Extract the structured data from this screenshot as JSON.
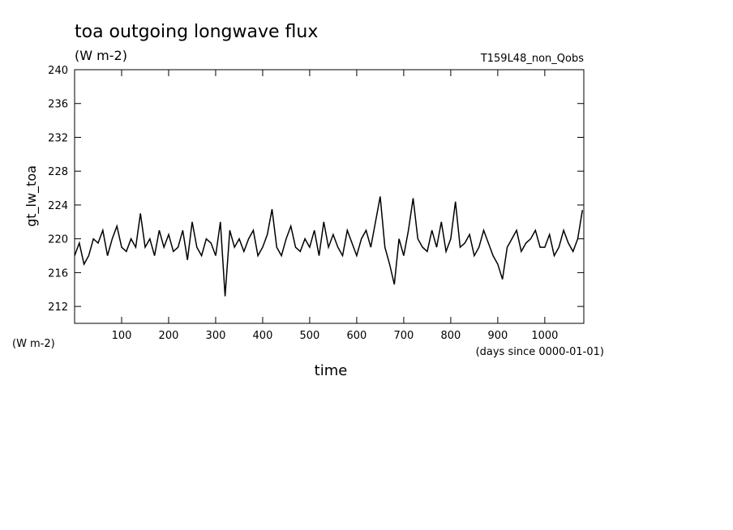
{
  "chart_data": {
    "type": "line",
    "title": "toa outgoing longwave flux",
    "subtitle": "(W m-2)",
    "experiment": "T159L48_non_Qobs",
    "y_label": "gt_lw_toa",
    "y_unit": "(W m-2)",
    "x_label": "time",
    "x_unit": "(days since 0000-01-01)",
    "xlim": [
      0,
      1083
    ],
    "ylim": [
      210,
      240
    ],
    "xticks": [
      100,
      200,
      300,
      400,
      500,
      600,
      700,
      800,
      900,
      1000
    ],
    "yticks": [
      212,
      216,
      220,
      224,
      228,
      232,
      236,
      240
    ],
    "grid": false,
    "series": [
      {
        "name": "gt_lw_toa",
        "color": "#000000",
        "x": [
          0,
          10,
          20,
          30,
          40,
          50,
          60,
          70,
          80,
          90,
          100,
          110,
          120,
          130,
          140,
          150,
          160,
          170,
          180,
          190,
          200,
          210,
          220,
          230,
          240,
          250,
          260,
          270,
          280,
          290,
          300,
          310,
          320,
          330,
          340,
          350,
          360,
          370,
          380,
          390,
          400,
          410,
          420,
          430,
          440,
          450,
          460,
          470,
          480,
          490,
          500,
          510,
          520,
          530,
          540,
          550,
          560,
          570,
          580,
          590,
          600,
          610,
          620,
          630,
          640,
          650,
          660,
          670,
          680,
          690,
          700,
          710,
          720,
          730,
          740,
          750,
          760,
          770,
          780,
          790,
          800,
          810,
          820,
          830,
          840,
          850,
          860,
          870,
          880,
          890,
          900,
          910,
          920,
          930,
          940,
          950,
          960,
          970,
          980,
          990,
          1000,
          1010,
          1020,
          1030,
          1040,
          1050,
          1060,
          1070,
          1080
        ],
        "values": [
          218,
          219.5,
          217,
          218,
          220,
          219.5,
          221,
          218,
          220,
          221.5,
          219,
          218.5,
          220,
          219,
          223,
          219,
          220,
          218,
          221,
          219,
          220.5,
          218.5,
          219,
          221,
          217.5,
          222,
          219,
          218,
          220,
          219.5,
          218,
          222,
          213.2,
          221,
          219,
          220,
          218.5,
          220,
          221,
          218,
          219,
          220.5,
          223.5,
          219,
          218,
          220,
          221.5,
          219,
          218.5,
          220,
          219,
          221,
          218,
          222,
          219,
          220.5,
          219,
          218,
          221,
          219.5,
          218,
          220,
          221,
          219,
          222,
          225,
          219,
          217,
          214.6,
          220,
          218,
          221,
          224.8,
          220,
          219,
          218.5,
          221,
          219,
          222,
          218.5,
          220,
          224.4,
          219,
          219.5,
          220.5,
          218,
          219,
          221,
          219.5,
          218,
          217,
          215.2,
          219,
          220,
          221,
          218.5,
          219.5,
          220,
          221,
          219,
          219,
          220.5,
          218,
          219,
          221,
          219.5,
          218.5,
          220,
          223.4
        ]
      }
    ]
  }
}
